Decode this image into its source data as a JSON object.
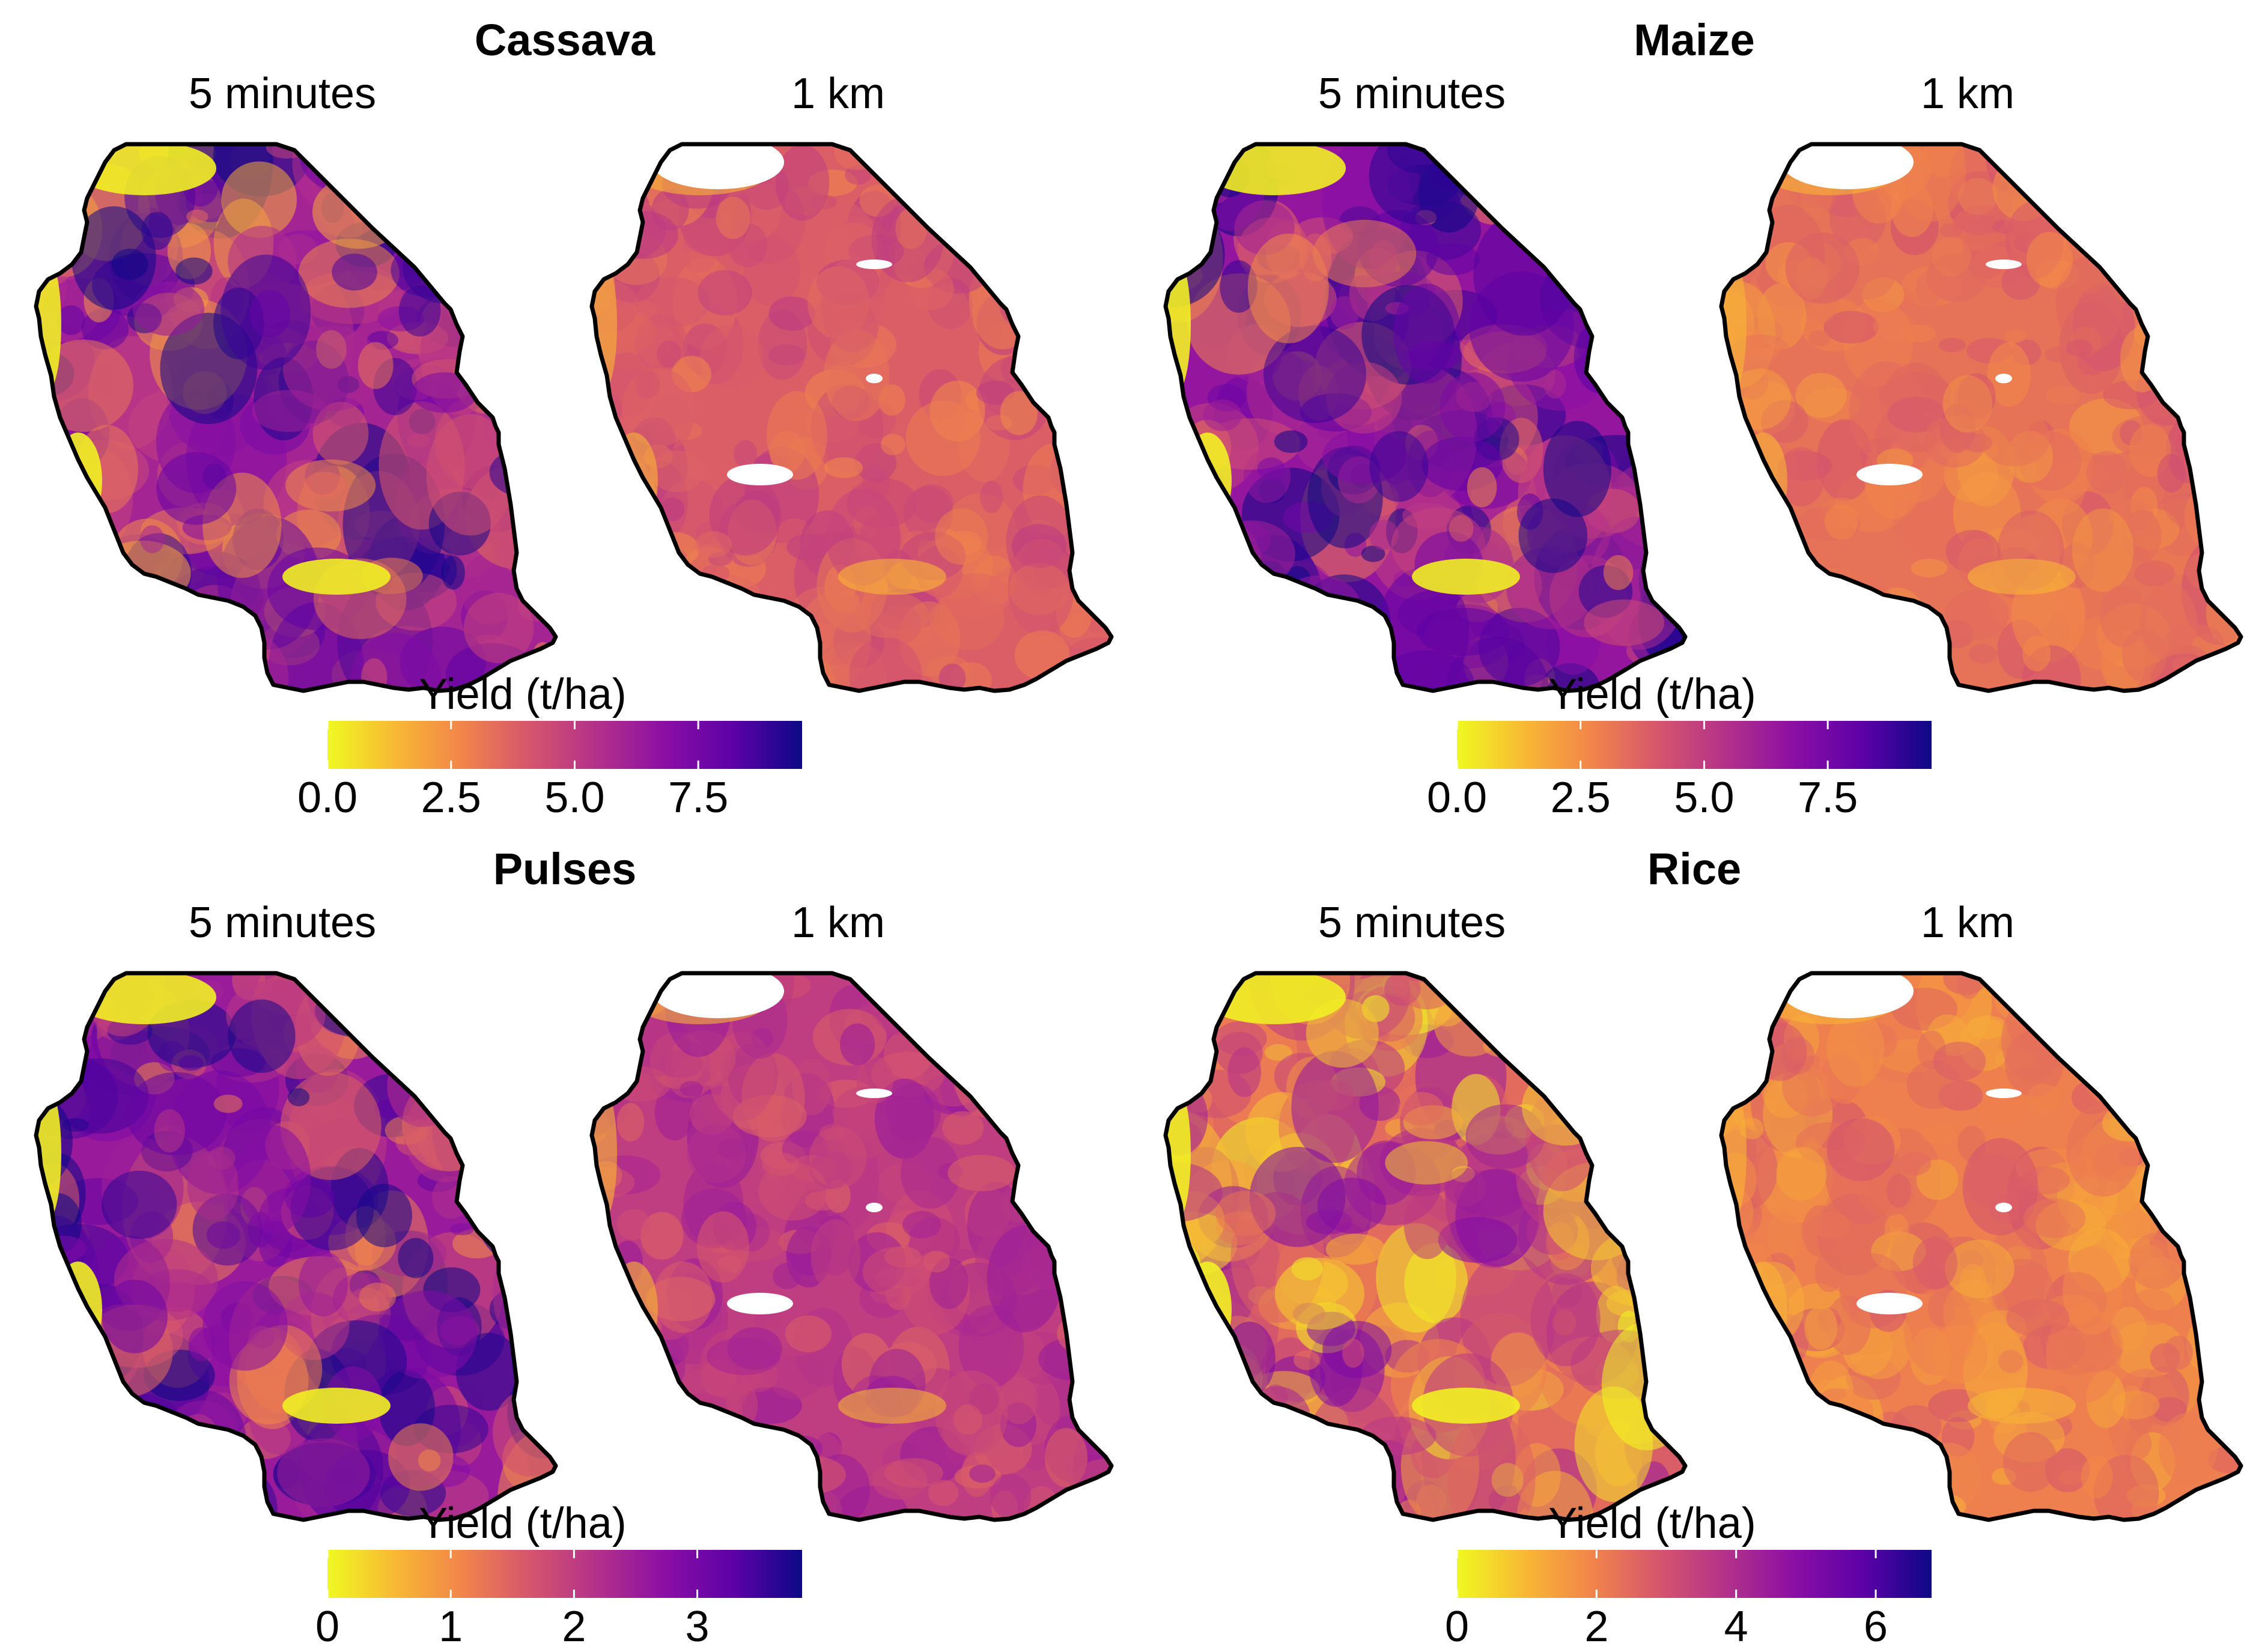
{
  "colormap": {
    "name": "plasma (reversed)",
    "stops": [
      "#f0f921",
      "#f8b834",
      "#f1844b",
      "#d5546e",
      "#b2308b",
      "#8a0ea5",
      "#5c01a6",
      "#0d0887"
    ]
  },
  "panels": [
    {
      "crop": "Cassava",
      "maps": [
        {
          "label": "5 minutes",
          "mean_level": 0.62,
          "texture": 0.28
        },
        {
          "label": "1 km",
          "mean_level": 0.4,
          "texture": 0.12
        }
      ],
      "colorbar": {
        "title": "Yield (t/ha)",
        "min": 0,
        "max": 9.6,
        "ticks": [
          "0.0",
          "2.5",
          "5.0",
          "7.5"
        ],
        "tick_values": [
          0,
          2.5,
          5,
          7.5
        ]
      }
    },
    {
      "crop": "Maize",
      "maps": [
        {
          "label": "5 minutes",
          "mean_level": 0.68,
          "texture": 0.26
        },
        {
          "label": "1 km",
          "mean_level": 0.34,
          "texture": 0.1
        }
      ],
      "colorbar": {
        "title": "Yield (t/ha)",
        "min": 0,
        "max": 9.6,
        "ticks": [
          "0.0",
          "2.5",
          "5.0",
          "7.5"
        ],
        "tick_values": [
          0,
          2.5,
          5,
          7.5
        ]
      }
    },
    {
      "crop": "Pulses",
      "maps": [
        {
          "label": "5 minutes",
          "mean_level": 0.66,
          "texture": 0.25
        },
        {
          "label": "1 km",
          "mean_level": 0.52,
          "texture": 0.14
        }
      ],
      "colorbar": {
        "title": "Yield (t/ha)",
        "min": 0,
        "max": 3.85,
        "ticks": [
          "0",
          "1",
          "2",
          "3"
        ],
        "tick_values": [
          0,
          1,
          2,
          3
        ]
      }
    },
    {
      "crop": "Rice",
      "maps": [
        {
          "label": "5 minutes",
          "mean_level": 0.36,
          "texture": 0.26
        },
        {
          "label": "1 km",
          "mean_level": 0.3,
          "texture": 0.12
        }
      ],
      "colorbar": {
        "title": "Yield (t/ha)",
        "min": 0,
        "max": 6.8,
        "ticks": [
          "0",
          "2",
          "4",
          "6"
        ],
        "tick_values": [
          0,
          2,
          4,
          6
        ]
      }
    }
  ]
}
